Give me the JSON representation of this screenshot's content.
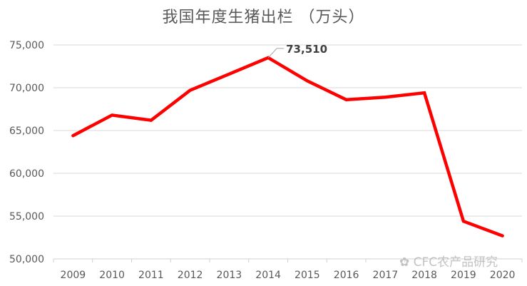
{
  "chart_data": {
    "type": "line",
    "title": "我国年度生猪出栏 （万头）",
    "xlabel": "",
    "ylabel": "",
    "categories": [
      "2009",
      "2010",
      "2011",
      "2012",
      "2013",
      "2014",
      "2015",
      "2016",
      "2017",
      "2018",
      "2019",
      "2020"
    ],
    "series": [
      {
        "name": "生猪出栏",
        "color": "#ff0000",
        "values": [
          64400,
          66800,
          66200,
          69700,
          71600,
          73510,
          70800,
          68600,
          68900,
          69400,
          54400,
          52700
        ]
      }
    ],
    "ylim": [
      50000,
      75000
    ],
    "yticks": [
      "50,000",
      "55,000",
      "60,000",
      "65,000",
      "70,000",
      "75,000"
    ],
    "grid": true,
    "legend": "none",
    "annotations": [
      {
        "category": "2014",
        "text": "73,510"
      }
    ]
  },
  "watermark": "CFC农产品研究"
}
